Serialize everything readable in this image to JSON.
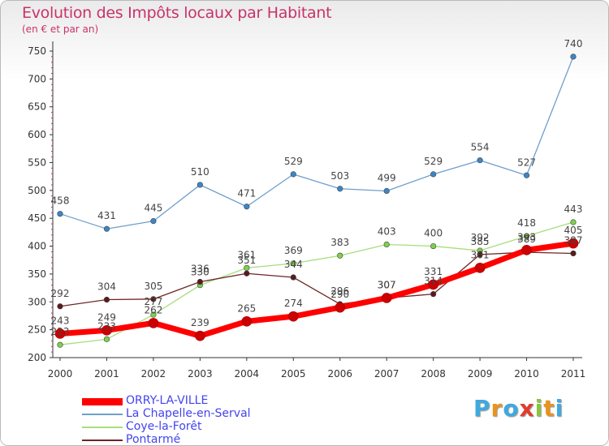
{
  "title": "Evolution des Impôts locaux par Habitant",
  "subtitle": "(en € et par an)",
  "logo": {
    "letters": [
      "P",
      "r",
      "o",
      "x",
      "i",
      "t",
      "i"
    ],
    "colors": [
      "#3fa9e0",
      "#e8931e",
      "#3fa9e0",
      "#e23c2d",
      "#8ac43f",
      "#e8931e",
      "#3fa9e0"
    ]
  },
  "chart_data": {
    "type": "line",
    "title": "Evolution des Impôts locaux par Habitant",
    "subtitle": "(en € et par an)",
    "x": [
      "2000",
      "2001",
      "2002",
      "2003",
      "2004",
      "2005",
      "2006",
      "2007",
      "2008",
      "2009",
      "2010",
      "2011"
    ],
    "yticks": [
      "200",
      "250",
      "300",
      "350",
      "400",
      "450",
      "500",
      "550",
      "600",
      "650",
      "700",
      "750"
    ],
    "ylim": [
      200,
      750
    ],
    "grid": false,
    "legend_position": "bottom-left",
    "series": [
      {
        "name": "ORRY-LA-VILLE",
        "color": "#ff0000",
        "marker": "#cc0000",
        "width": 7,
        "values": [
          243,
          249,
          262,
          239,
          265,
          274,
          290,
          307,
          331,
          361,
          393,
          405
        ],
        "labels": [
          "243",
          "249",
          "262",
          "239",
          "265",
          "274",
          "290",
          "307",
          "331",
          "361",
          "393",
          "405"
        ]
      },
      {
        "name": "La Chapelle-en-Serval",
        "color": "#6e9fcd",
        "marker": "#3b86c8",
        "width": 1.3,
        "values": [
          458,
          431,
          445,
          510,
          471,
          529,
          503,
          499,
          529,
          554,
          527,
          740
        ],
        "labels": [
          "458",
          "431",
          "445",
          "510",
          "471",
          "529",
          "503",
          "499",
          "529",
          "554",
          "527",
          "740"
        ]
      },
      {
        "name": "Coye-la-Forêt",
        "color": "#a6de7d",
        "marker": "#7ed14a",
        "width": 1.3,
        "values": [
          223,
          233,
          277,
          330,
          361,
          369,
          383,
          403,
          400,
          392,
          418,
          443
        ],
        "labels": [
          "223",
          "233",
          "277",
          "330",
          "361",
          "369",
          "383",
          "403",
          "400",
          "392",
          "418",
          "443"
        ]
      },
      {
        "name": "Pontarmé",
        "color": "#6d2626",
        "marker": "#5a1a1a",
        "width": 1.3,
        "values": [
          292,
          304,
          305,
          336,
          351,
          344,
          296,
          307,
          314,
          385,
          389,
          387
        ],
        "labels": [
          "292",
          "304",
          "305",
          "336",
          "351",
          "344",
          "296",
          "307",
          "314",
          "385",
          "389",
          "387"
        ]
      }
    ]
  }
}
